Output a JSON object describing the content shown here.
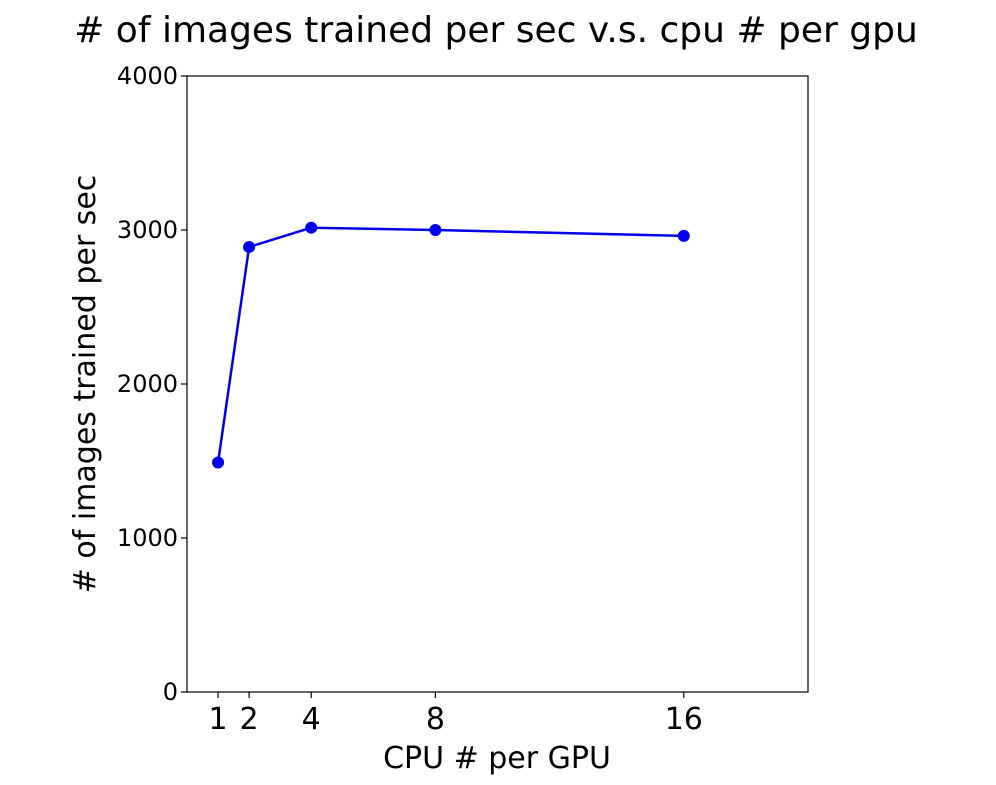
{
  "chart_data": {
    "type": "line",
    "title": "# of images trained per sec v.s. cpu # per gpu",
    "xlabel": "CPU # per GPU",
    "ylabel": "# of images trained per sec",
    "x": [
      1,
      2,
      4,
      8,
      16
    ],
    "series": [
      {
        "values": [
          1490,
          2890,
          3015,
          3000,
          2962
        ]
      }
    ],
    "xticks": [
      1,
      2,
      4,
      8,
      16
    ],
    "xtick_labels": [
      "1",
      "2",
      "4",
      "8",
      "16"
    ],
    "yticks": [
      0,
      1000,
      2000,
      3000,
      4000
    ],
    "ytick_labels": [
      "0",
      "1000",
      "2000",
      "3000",
      "4000"
    ],
    "xlim": [
      0,
      20
    ],
    "ylim": [
      0,
      4000
    ],
    "grid": false,
    "line_color": "#0000ee",
    "marker_color": "#0000ee"
  }
}
